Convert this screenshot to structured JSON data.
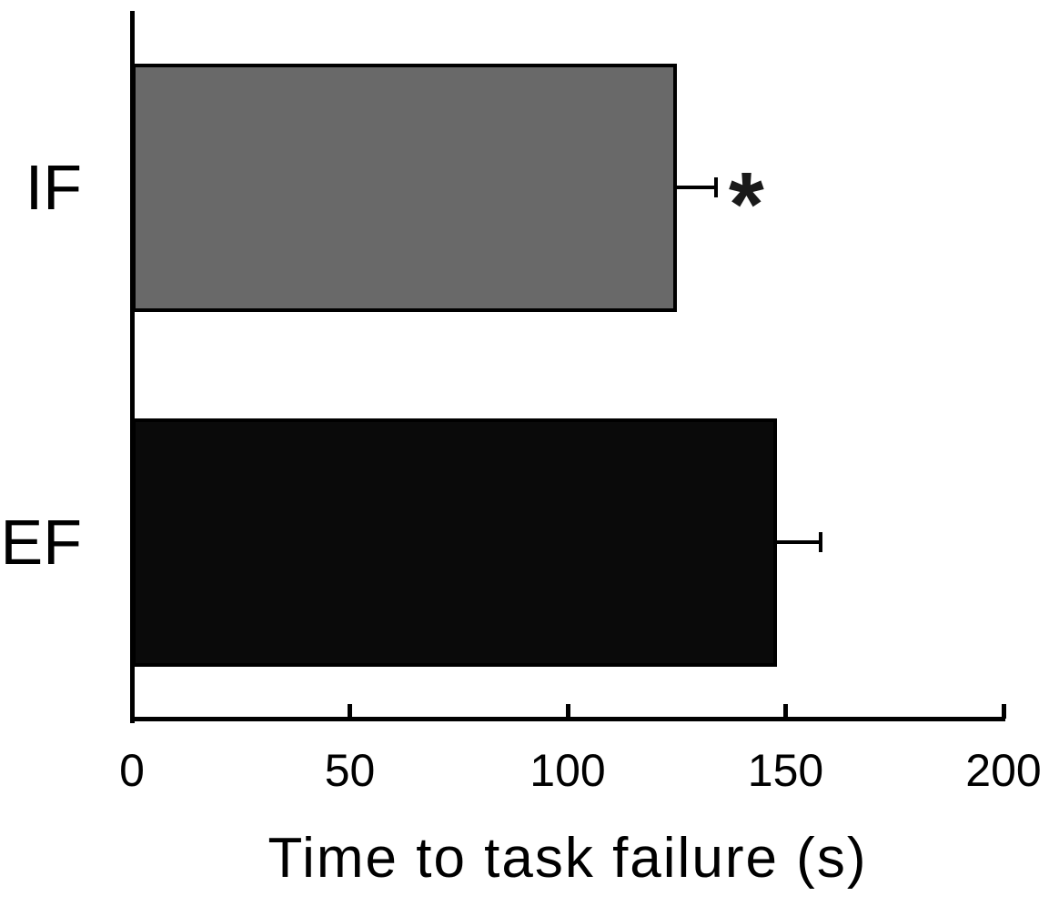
{
  "figure": {
    "background": "#ffffff",
    "axis_color": "#000000"
  },
  "chart_data": {
    "type": "bar",
    "orientation": "horizontal",
    "title": "",
    "xlabel": "Time to task failure (s)",
    "ylabel": "",
    "categories": [
      "IF",
      "EF"
    ],
    "values": [
      125,
      148
    ],
    "errors": [
      9,
      10
    ],
    "bar_colors": [
      "#696969",
      "#0a0a0a"
    ],
    "bar_border_color": "#000000",
    "xlim": [
      0,
      200
    ],
    "xticks": [
      0,
      50,
      100,
      150,
      200
    ],
    "grid": false,
    "legend": false,
    "annotations": [
      {
        "category": "IF",
        "symbol": "*"
      }
    ]
  }
}
